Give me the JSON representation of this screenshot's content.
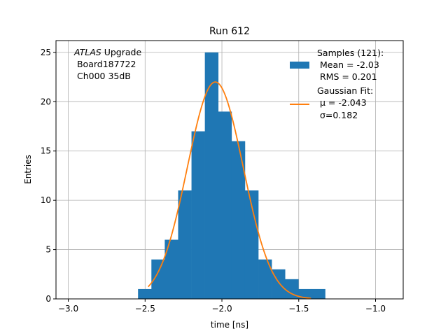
{
  "chart_data": {
    "type": "bar",
    "title": "Run 612",
    "xlabel": "time [ns]",
    "ylabel": "Entries",
    "xlim": [
      -3.08,
      -0.82
    ],
    "ylim": [
      0,
      26.2
    ],
    "grid": true,
    "x_ticks": [
      -3.0,
      -2.5,
      -2.0,
      -1.5,
      -1.0
    ],
    "x_tick_labels": [
      "−3.0",
      "−2.5",
      "−2.0",
      "−1.5",
      "−1.0"
    ],
    "y_ticks": [
      0,
      5,
      10,
      15,
      20,
      25
    ],
    "y_tick_labels": [
      "0",
      "5",
      "10",
      "15",
      "20",
      "25"
    ],
    "annotation": {
      "prefix": "ATLAS",
      "suffix": " Upgrade",
      "line2": " Board187722",
      "line3": " Ch000 35dB"
    },
    "legend_position": "top-right",
    "series": [
      {
        "kind": "histogram",
        "color": "#1f77b4",
        "legend_lines": [
          "Samples (121):",
          " Mean = -2.03",
          " RMS = 0.201"
        ],
        "bins": [
          {
            "x0": -2.546,
            "x1": -2.459,
            "count": 1
          },
          {
            "x0": -2.459,
            "x1": -2.372,
            "count": 4
          },
          {
            "x0": -2.372,
            "x1": -2.285,
            "count": 6
          },
          {
            "x0": -2.285,
            "x1": -2.198,
            "count": 11
          },
          {
            "x0": -2.198,
            "x1": -2.111,
            "count": 17
          },
          {
            "x0": -2.111,
            "x1": -2.024,
            "count": 25
          },
          {
            "x0": -2.024,
            "x1": -1.937,
            "count": 19
          },
          {
            "x0": -1.937,
            "x1": -1.85,
            "count": 16
          },
          {
            "x0": -1.85,
            "x1": -1.763,
            "count": 11
          },
          {
            "x0": -1.763,
            "x1": -1.676,
            "count": 4
          },
          {
            "x0": -1.676,
            "x1": -1.589,
            "count": 3
          },
          {
            "x0": -1.589,
            "x1": -1.502,
            "count": 2
          },
          {
            "x0": -1.502,
            "x1": -1.415,
            "count": 1
          },
          {
            "x0": -1.415,
            "x1": -1.328,
            "count": 1
          }
        ]
      },
      {
        "kind": "line",
        "color": "#ff7f0e",
        "legend_lines": [
          "Gaussian Fit:",
          " μ = -2.043",
          " σ=0.182"
        ],
        "fit": {
          "amplitude": 22.0,
          "mean": -2.043,
          "sigma": 0.182,
          "x_from": -2.48,
          "x_to": -1.42
        }
      }
    ]
  }
}
